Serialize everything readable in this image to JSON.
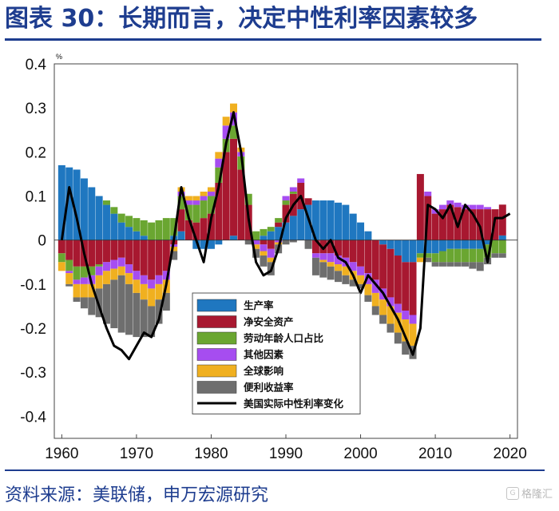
{
  "header": {
    "title": "图表 30：长期而言，决定中性利率因素较多"
  },
  "footer": {
    "source": "资料来源：美联储，申万宏源研究",
    "watermark": "格隆汇"
  },
  "colors": {
    "title": "#1e3d8f",
    "growth": "#1f77c0",
    "safe_assets": "#a81830",
    "demographics": "#6aa631",
    "other": "#a64df0",
    "global": "#f0b020",
    "convenience": "#6e6e6e",
    "rstar_line": "#000000"
  },
  "chart_data": {
    "type": "bar",
    "stacked": true,
    "unit": "%",
    "xlim": [
      1959,
      2021
    ],
    "ylim": [
      -0.45,
      0.4
    ],
    "yticks": [
      0.4,
      0.3,
      0.2,
      0.1,
      0,
      -0.1,
      -0.2,
      -0.3,
      -0.4
    ],
    "ytick_labels": [
      "0.4",
      "0.3",
      "0.2",
      "0.1",
      "0",
      "-0.1",
      "-0.2",
      "-0.3",
      "-0.4"
    ],
    "xticks": [
      1960,
      1970,
      1980,
      1990,
      2000,
      2010,
      2020
    ],
    "xtick_labels": [
      "1960",
      "1970",
      "1980",
      "1990",
      "2000",
      "2010",
      "2020"
    ],
    "legend_position": "lower-center",
    "series": [
      {
        "name": "生产率",
        "key": "growth",
        "x": [
          1960,
          1962,
          1964,
          1966,
          1968,
          1970,
          1972,
          1974,
          1976,
          1978,
          1980,
          1982,
          1983,
          1984,
          1986,
          1988,
          1990,
          1992,
          1994,
          1996,
          1998,
          2000,
          2002,
          2004,
          2006,
          2007,
          2008,
          2009,
          2010,
          2012,
          2014,
          2016,
          2018,
          2019.9
        ],
        "y": [
          0.17,
          0.16,
          0.12,
          0.08,
          0.04,
          0.02,
          0.0,
          0.0,
          0.02,
          -0.02,
          -0.02,
          0.0,
          0.01,
          0.0,
          0.0,
          0.02,
          0.04,
          0.07,
          0.09,
          0.09,
          0.08,
          0.04,
          0.0,
          -0.02,
          -0.05,
          -0.05,
          -0.03,
          -0.03,
          -0.03,
          -0.02,
          -0.02,
          -0.02,
          0.0,
          0.02
        ]
      },
      {
        "name": "净安全资产",
        "key": "safe_assets",
        "x": [
          1960,
          1962,
          1964,
          1966,
          1968,
          1970,
          1972,
          1974,
          1976,
          1978,
          1980,
          1982,
          1983,
          1984,
          1986,
          1988,
          1990,
          1992,
          1994,
          1996,
          1998,
          2000,
          2002,
          2004,
          2006,
          2007,
          2008,
          2009,
          2010,
          2012,
          2014,
          2016,
          2018,
          2019.9
        ],
        "y": [
          -0.03,
          -0.06,
          -0.06,
          -0.05,
          -0.04,
          -0.07,
          -0.09,
          -0.07,
          0.05,
          0.04,
          0.06,
          0.2,
          0.22,
          0.16,
          0.0,
          -0.02,
          0.04,
          0.06,
          -0.03,
          -0.03,
          -0.04,
          -0.06,
          -0.09,
          -0.11,
          -0.11,
          -0.12,
          0.15,
          0.1,
          0.06,
          0.08,
          0.07,
          0.07,
          0.07,
          0.07
        ]
      },
      {
        "name": "劳动年龄人口占比",
        "key": "demographics",
        "x": [
          1960,
          1962,
          1964,
          1966,
          1968,
          1970,
          1972,
          1974,
          1976,
          1978,
          1980,
          1982,
          1983,
          1984,
          1986,
          1988,
          1990,
          1992,
          1994,
          1996,
          1998,
          2000,
          2002,
          2004,
          2006,
          2007,
          2008,
          2009,
          2010,
          2012,
          2014,
          2016,
          2018,
          2019.9
        ],
        "y": [
          -0.02,
          -0.03,
          -0.02,
          0.01,
          0.02,
          0.03,
          0.04,
          0.05,
          0.03,
          0.04,
          0.04,
          0.03,
          0.03,
          0.03,
          0.02,
          0.01,
          0.01,
          0.0,
          0.0,
          0.0,
          0.0,
          0.0,
          0.0,
          0.0,
          0.0,
          0.0,
          -0.01,
          -0.01,
          -0.02,
          -0.03,
          -0.03,
          -0.03,
          -0.03,
          -0.03
        ]
      },
      {
        "name": "其他因素",
        "key": "other",
        "x": [
          1960,
          1962,
          1964,
          1966,
          1968,
          1970,
          1972,
          1974,
          1976,
          1978,
          1980,
          1982,
          1983,
          1984,
          1986,
          1988,
          1990,
          1992,
          1994,
          1996,
          1998,
          2000,
          2002,
          2004,
          2006,
          2007,
          2008,
          2009,
          2010,
          2012,
          2014,
          2016,
          2018,
          2019.9
        ],
        "y": [
          0.0,
          -0.01,
          -0.02,
          -0.02,
          -0.02,
          -0.02,
          -0.02,
          -0.02,
          0.01,
          0.01,
          0.01,
          0.03,
          0.03,
          0.01,
          -0.01,
          -0.02,
          0.01,
          0.01,
          -0.01,
          -0.02,
          -0.02,
          -0.02,
          -0.03,
          -0.02,
          -0.02,
          -0.02,
          0.0,
          0.01,
          0.01,
          0.01,
          0.01,
          0.01,
          0.0,
          0.0
        ]
      },
      {
        "name": "全球影响",
        "key": "global",
        "x": [
          1960,
          1962,
          1964,
          1966,
          1968,
          1970,
          1972,
          1974,
          1976,
          1978,
          1980,
          1982,
          1983,
          1984,
          1986,
          1988,
          1990,
          1992,
          1994,
          1996,
          1998,
          2000,
          2002,
          2004,
          2006,
          2007,
          2008,
          2009,
          2010,
          2012,
          2014,
          2016,
          2018,
          2019.9
        ],
        "y": [
          -0.02,
          -0.03,
          -0.03,
          -0.03,
          -0.02,
          -0.03,
          -0.04,
          -0.03,
          0.01,
          0.01,
          0.01,
          0.02,
          0.02,
          0.01,
          -0.01,
          -0.01,
          0.0,
          0.0,
          0.0,
          -0.01,
          -0.02,
          -0.02,
          -0.03,
          -0.04,
          -0.05,
          -0.05,
          -0.01,
          0.0,
          0.0,
          0.0,
          0.0,
          0.0,
          0.0,
          0.0
        ]
      },
      {
        "name": "便利收益率",
        "key": "convenience",
        "x": [
          1960,
          1962,
          1964,
          1966,
          1968,
          1970,
          1972,
          1974,
          1976,
          1978,
          1980,
          1982,
          1983,
          1984,
          1986,
          1988,
          1990,
          1992,
          1994,
          1996,
          1998,
          2000,
          2002,
          2004,
          2006,
          2007,
          2008,
          2009,
          2010,
          2012,
          2014,
          2016,
          2018,
          2019.9
        ],
        "y": [
          0.0,
          -0.01,
          -0.04,
          -0.09,
          -0.13,
          -0.1,
          -0.07,
          -0.04,
          0.0,
          0.0,
          0.0,
          0.0,
          0.0,
          0.0,
          -0.02,
          -0.03,
          -0.01,
          0.0,
          -0.04,
          -0.03,
          -0.02,
          -0.01,
          -0.02,
          -0.02,
          -0.03,
          -0.03,
          0.0,
          -0.01,
          -0.01,
          -0.01,
          -0.01,
          -0.02,
          -0.01,
          -0.01
        ]
      },
      {
        "name": "美国实际中性利率变化",
        "key": "rstar_line",
        "mark": "line",
        "x": [
          1960,
          1961,
          1962,
          1963,
          1964,
          1965,
          1966,
          1967,
          1968,
          1969,
          1970,
          1971,
          1972,
          1973,
          1974,
          1975,
          1976,
          1977,
          1978,
          1979,
          1980,
          1981,
          1982,
          1983,
          1984,
          1985,
          1986,
          1987,
          1988,
          1989,
          1990,
          1991,
          1992,
          1993,
          1994,
          1995,
          1996,
          1997,
          1998,
          1999,
          2000,
          2001,
          2002,
          2003,
          2004,
          2005,
          2006,
          2007,
          2008,
          2009,
          2010,
          2011,
          2012,
          2013,
          2014,
          2015,
          2016,
          2017,
          2018,
          2019,
          2020
        ],
        "y": [
          0.0,
          0.12,
          0.05,
          -0.03,
          -0.1,
          -0.15,
          -0.2,
          -0.24,
          -0.25,
          -0.27,
          -0.24,
          -0.21,
          -0.22,
          -0.18,
          -0.1,
          0.0,
          0.12,
          0.05,
          0.0,
          -0.05,
          0.05,
          0.12,
          0.22,
          0.29,
          0.2,
          0.05,
          -0.05,
          -0.08,
          -0.07,
          -0.02,
          0.05,
          0.08,
          0.1,
          0.05,
          0.0,
          -0.02,
          0.0,
          -0.04,
          -0.05,
          -0.08,
          -0.12,
          -0.08,
          -0.1,
          -0.12,
          -0.15,
          -0.18,
          -0.22,
          -0.26,
          -0.2,
          0.08,
          0.07,
          0.05,
          0.08,
          0.03,
          0.08,
          0.06,
          0.03,
          -0.05,
          0.05,
          0.05,
          0.06
        ]
      }
    ]
  }
}
